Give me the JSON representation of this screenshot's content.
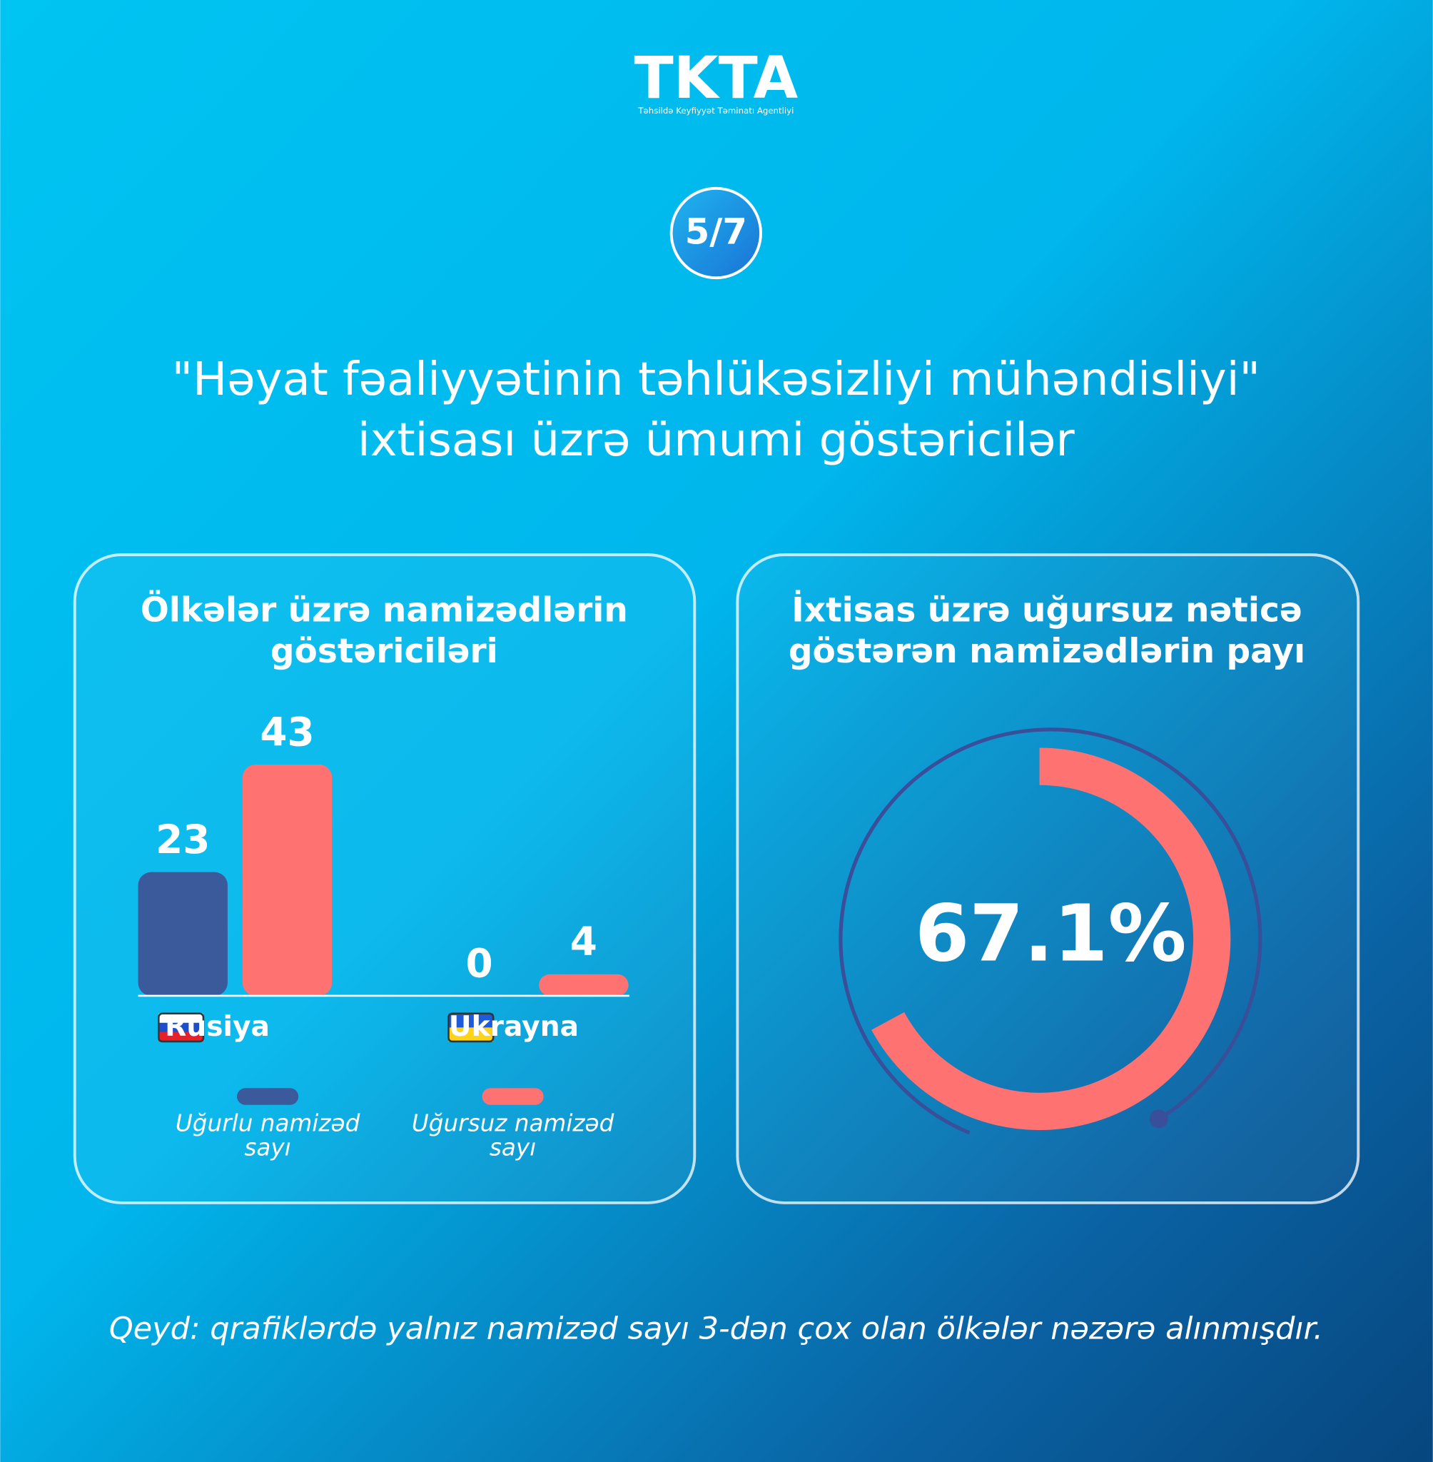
{
  "header": {
    "logo": "TKTA",
    "tagline": "Təhsildə Keyfiyyət Təminatı Agentliyi"
  },
  "badge": "5/7",
  "title": [
    "\"Həyat fəaliyyətinin təhlükəsizliyi mühəndisliyi\"",
    "ixtisası üzrə ümumi göstəricilər"
  ],
  "note": "Qeyd: qrafiklərdə yalnız namizəd sayı 3-dən çox olan ölkələr nəzərə alınmışdır.",
  "chart_data": [
    {
      "type": "bar",
      "title": [
        "Ölkələr üzrə namizədlərin",
        "göstəriciləri"
      ],
      "categories": [
        "Rusiya",
        "Ukrayna"
      ],
      "series": [
        {
          "name": "Uğurlu namizəd sayı",
          "color": "#3a5a9c",
          "values": [
            23,
            0
          ]
        },
        {
          "name": "Uğursuz namizəd sayı",
          "color": "#ff7272",
          "values": [
            43,
            4
          ]
        }
      ]
    },
    {
      "type": "donut",
      "title": [
        "İxtisas üzrə uğursuz nəticə",
        "göstərən namizədlərin payı"
      ],
      "values": [
        67.1
      ],
      "value_labels": [
        "67.1%"
      ],
      "color": "#ff7272"
    }
  ]
}
